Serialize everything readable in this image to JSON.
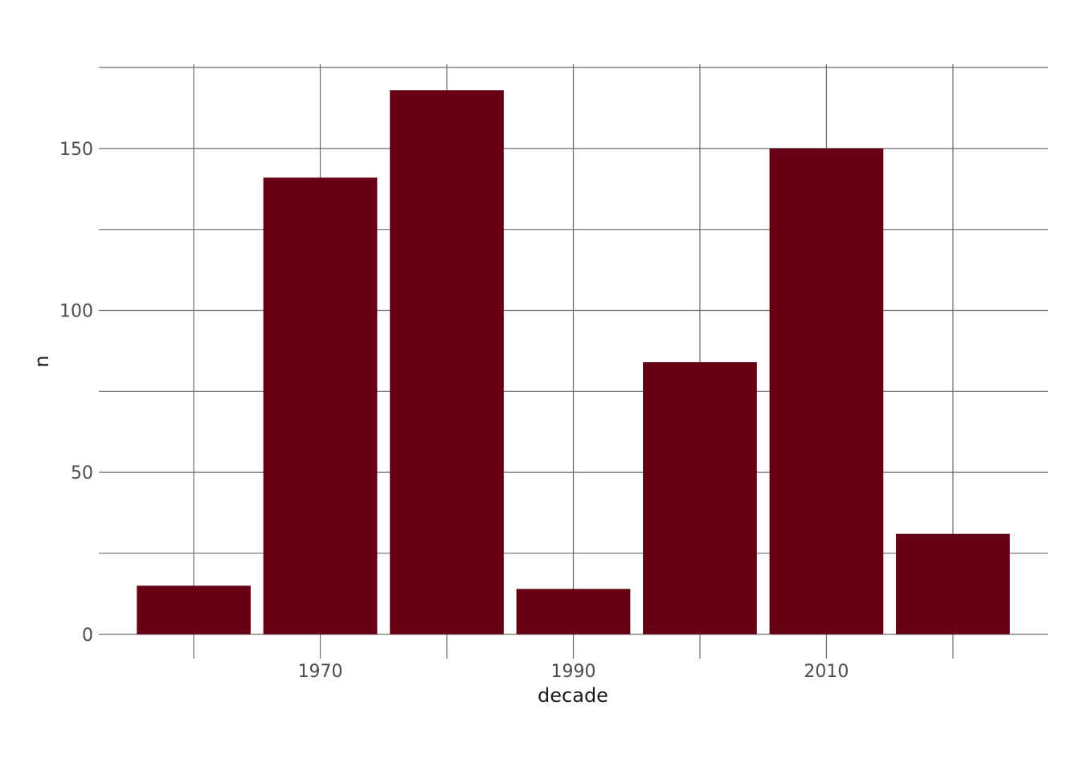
{
  "chart_data": {
    "type": "bar",
    "x": [
      1960,
      1970,
      1980,
      1990,
      2000,
      2010,
      2020
    ],
    "values": [
      15,
      141,
      168,
      14,
      84,
      150,
      31
    ],
    "bar_color": "#660015",
    "grid_color": "#6b6b6b",
    "xlabel": "decade",
    "ylabel": "n",
    "xlim": [
      1952.5,
      2027.5
    ],
    "ylim": [
      -7.5,
      176
    ],
    "x_gridlines": [
      1960,
      1970,
      1980,
      1990,
      2000,
      2010,
      2020
    ],
    "x_ticks": [
      1970,
      1990,
      2010
    ],
    "x_tick_labels": [
      "1970",
      "1990",
      "2010"
    ],
    "y_gridlines": [
      0,
      25,
      50,
      75,
      100,
      125,
      150,
      175
    ],
    "y_ticks": [
      0,
      50,
      100,
      150
    ],
    "y_tick_labels": [
      "0",
      "50",
      "100",
      "150"
    ],
    "bar_width_years": 9,
    "grid": true,
    "legend": "none"
  }
}
